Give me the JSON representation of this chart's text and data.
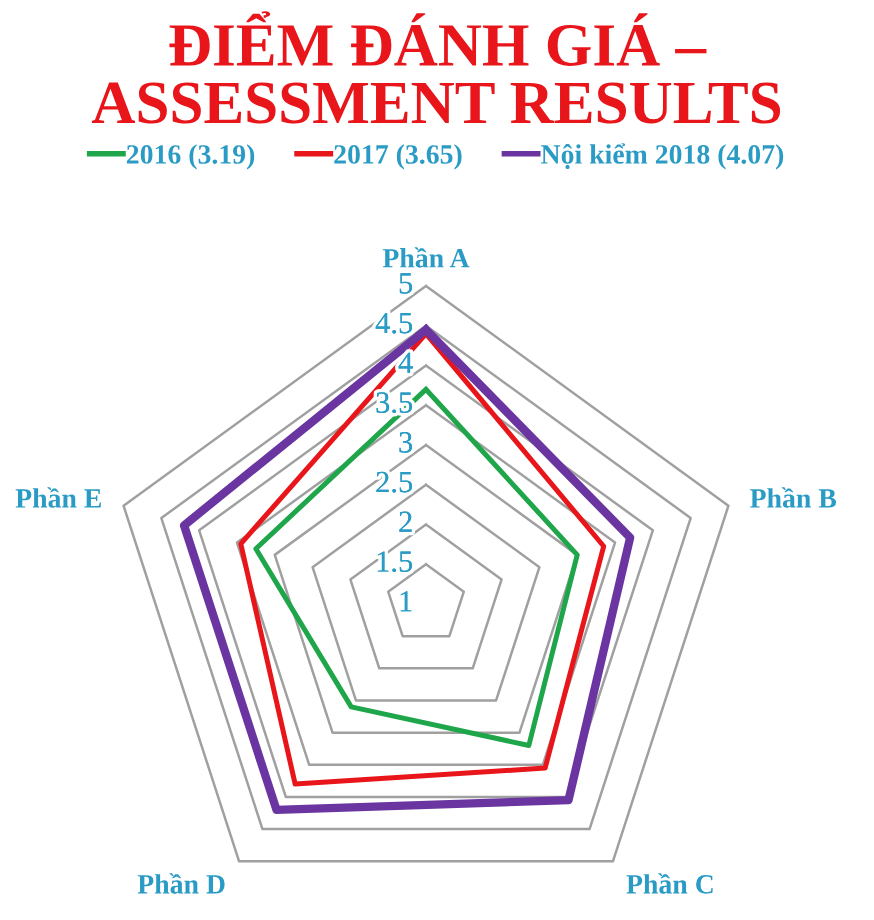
{
  "chart_data": {
    "type": "radar",
    "title": "ĐIỂM ĐÁNH GIÁ –\nASSESSMENT RESULTS",
    "categories": [
      "Phần A",
      "Phần B",
      "Phần C",
      "Phần D",
      "Phần E"
    ],
    "series": [
      {
        "name": "2016 (3.19)",
        "color": "#1fa64a",
        "values": [
          3.7,
          3.0,
          3.2,
          2.6,
          3.25
        ]
      },
      {
        "name": "2017 (3.65)",
        "color": "#e8161b",
        "values": [
          4.4,
          3.35,
          3.55,
          3.8,
          3.45
        ]
      },
      {
        "name": "Nội kiểm 2018 (4.07)",
        "color": "#6a35a0",
        "values": [
          4.45,
          3.7,
          4.05,
          4.2,
          4.2
        ]
      }
    ],
    "ylim": [
      1,
      5
    ],
    "yticks": [
      1,
      1.5,
      2,
      2.5,
      3,
      3.5,
      4,
      4.5,
      5
    ],
    "grid": true,
    "legend": "top",
    "marker": "none",
    "line_style": "solid"
  }
}
